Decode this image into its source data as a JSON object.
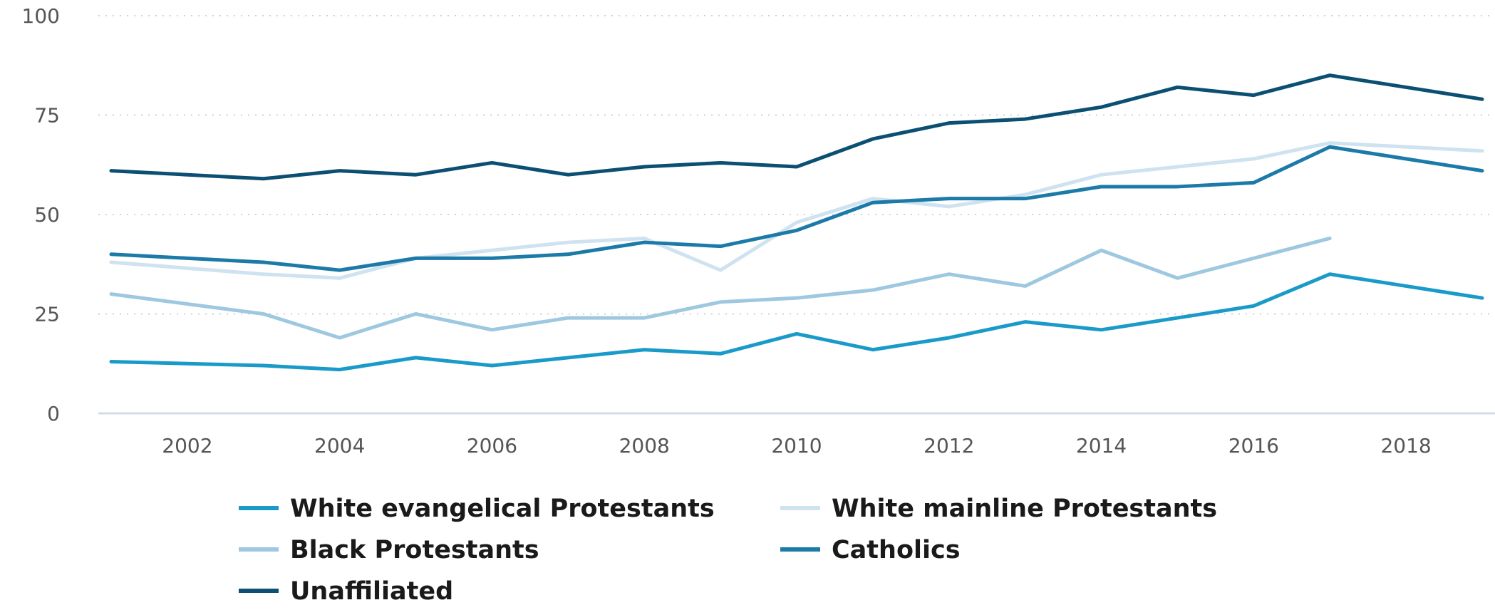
{
  "chart_data": {
    "type": "line",
    "x": [
      2001,
      2002,
      2003,
      2004,
      2005,
      2006,
      2007,
      2008,
      2009,
      2010,
      2011,
      2012,
      2013,
      2014,
      2015,
      2016,
      2017,
      2018,
      2019
    ],
    "x_ticks": [
      "2002",
      "2004",
      "2006",
      "2008",
      "2010",
      "2012",
      "2014",
      "2016",
      "2018"
    ],
    "y_ticks": [
      "0",
      "25",
      "50",
      "75",
      "100"
    ],
    "ylim": [
      0,
      100
    ],
    "xlim": [
      2001,
      2019
    ],
    "grid": "horizontal dotted",
    "legend_position": "bottom",
    "series": [
      {
        "name": "White evangelical Protestants",
        "color": "#1a9ac9",
        "values": [
          13,
          12.5,
          12,
          11,
          14,
          12,
          14,
          16,
          15,
          20,
          16,
          19,
          23,
          21,
          24,
          27,
          35,
          32,
          29
        ]
      },
      {
        "name": "White mainline Protestants",
        "color": "#cfe2f0",
        "values": [
          38,
          36.5,
          35,
          34,
          39,
          41,
          43,
          44,
          36,
          48,
          54,
          52,
          55,
          60,
          62,
          64,
          68,
          67,
          66
        ]
      },
      {
        "name": "Black Protestants",
        "color": "#9ec8e0",
        "values": [
          30,
          27.5,
          25,
          19,
          25,
          21,
          24,
          24,
          28,
          29,
          31,
          35,
          32,
          41,
          34,
          39,
          44,
          null,
          null
        ]
      },
      {
        "name": "Catholics",
        "color": "#1c7aa8",
        "values": [
          40,
          39,
          38,
          36,
          39,
          39,
          40,
          43,
          42,
          46,
          53,
          54,
          54,
          57,
          57,
          58,
          67,
          64,
          61
        ]
      },
      {
        "name": "Unaffiliated",
        "color": "#0b4f72",
        "values": [
          61,
          60,
          59,
          61,
          60,
          63,
          60,
          62,
          63,
          62,
          69,
          73,
          74,
          77,
          82,
          80,
          85,
          82,
          79
        ]
      }
    ]
  }
}
